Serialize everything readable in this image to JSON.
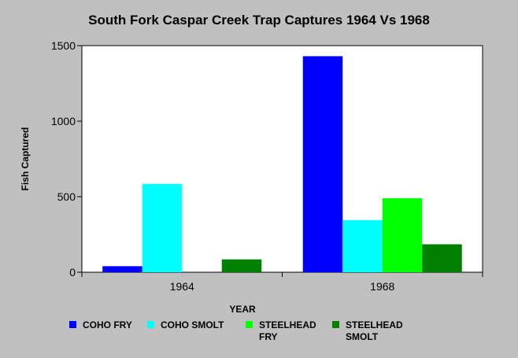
{
  "chart_data": {
    "type": "bar",
    "title": "South Fork Caspar Creek Trap Captures 1964 Vs 1968",
    "xlabel": "YEAR",
    "ylabel": "Fish Captured",
    "categories": [
      "1964",
      "1968"
    ],
    "ylim": [
      0,
      1500
    ],
    "yticks": [
      "0",
      "500",
      "1000",
      "1500"
    ],
    "grid": false,
    "legend_placement": "bottom",
    "series": [
      {
        "name": "COHO FRY",
        "color": "#0000ff",
        "values": [
          40,
          1430
        ]
      },
      {
        "name": "COHO SMOLT",
        "color": "#00ffff",
        "values": [
          585,
          345
        ]
      },
      {
        "name": "STEELHEAD FRY",
        "color": "#00ff00",
        "values": [
          0,
          490
        ]
      },
      {
        "name": "STEELHEAD SMOLT",
        "color": "#008000",
        "values": [
          85,
          185
        ]
      }
    ]
  }
}
